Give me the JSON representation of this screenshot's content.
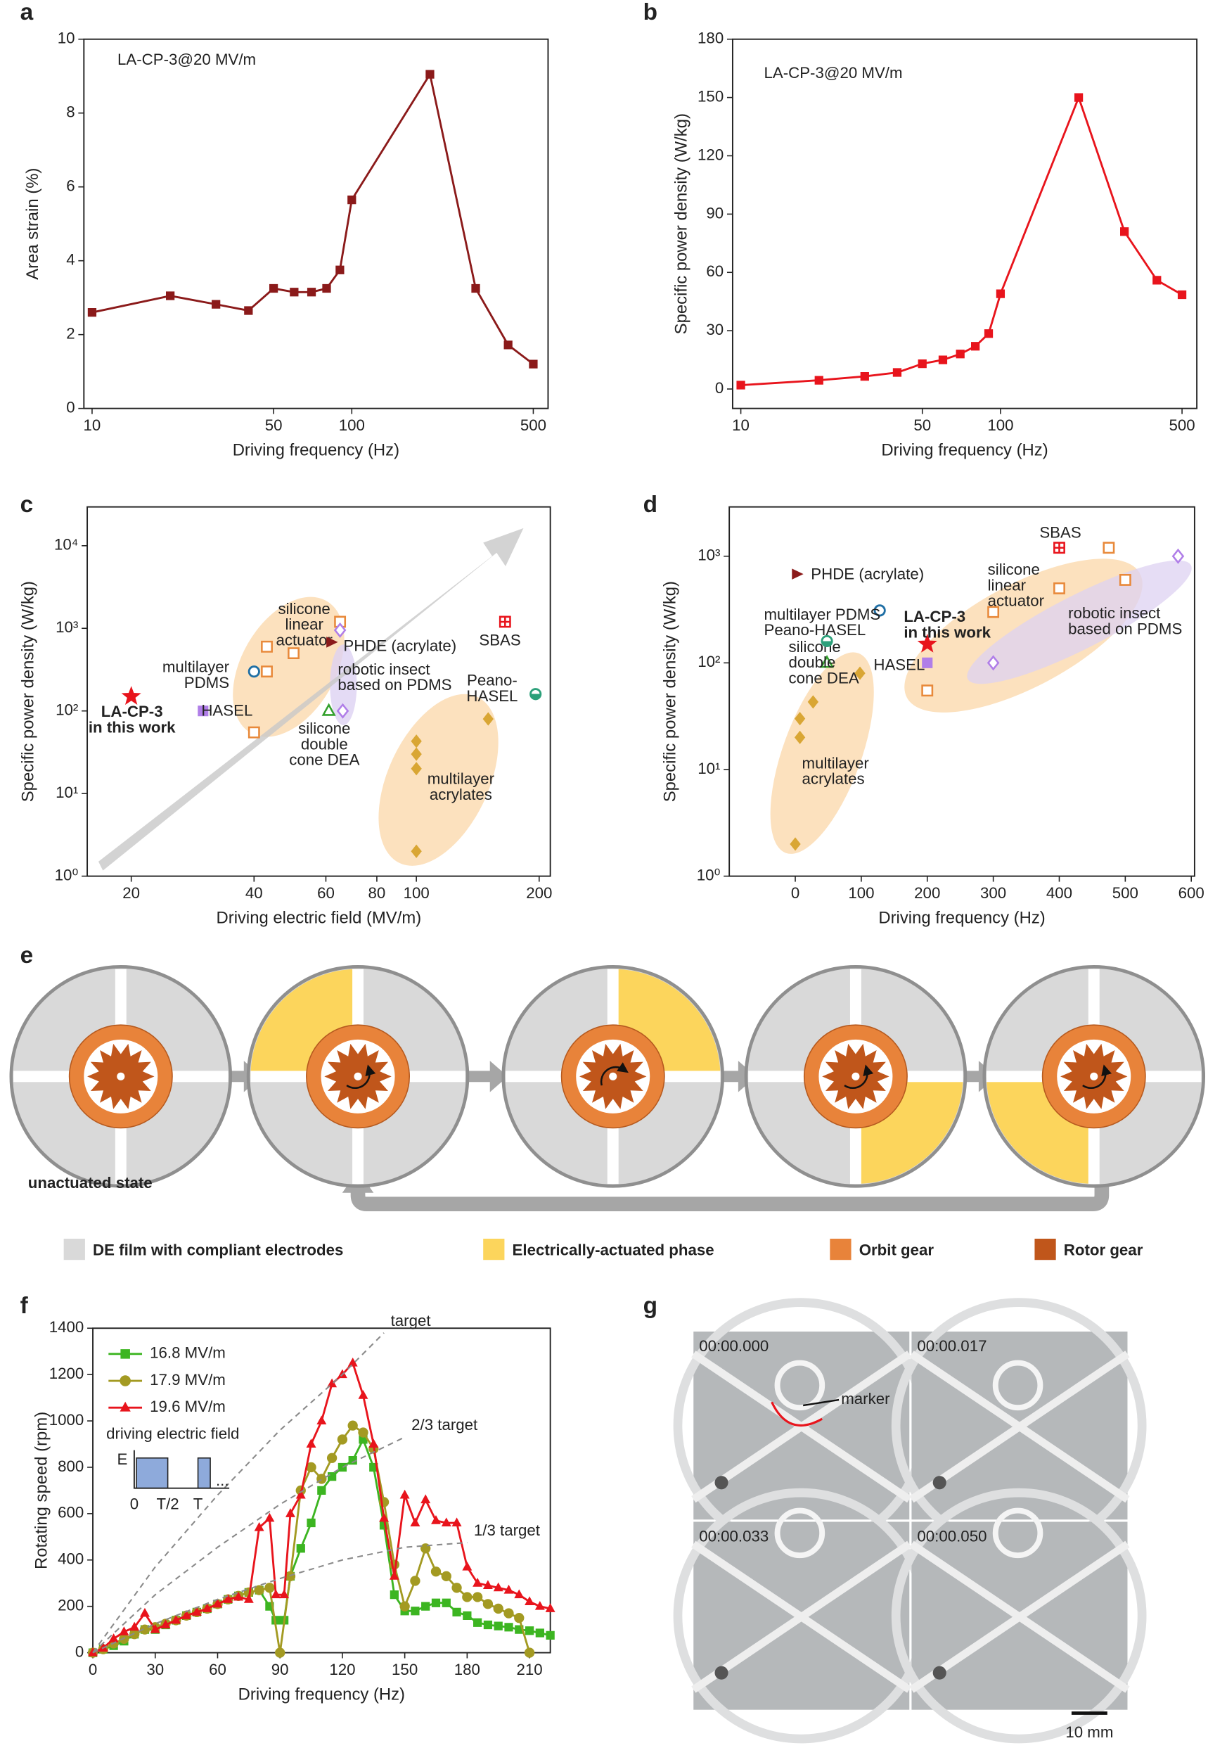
{
  "chart_data": [
    {
      "panel": "a",
      "type": "line",
      "annotation": "LA-CP-3@20 MV/m",
      "x_label": "Driving frequency (Hz)",
      "y_label": "Area strain (%)",
      "x": [
        10,
        20,
        30,
        40,
        50,
        60,
        70,
        80,
        90,
        100,
        200,
        300,
        400,
        500
      ],
      "values": [
        2.6,
        3.05,
        2.82,
        2.65,
        3.25,
        3.15,
        3.15,
        3.25,
        3.75,
        5.65,
        9.05,
        3.25,
        1.72,
        1.2
      ],
      "color": "#8b1a1a",
      "marker": "square",
      "x_log": true,
      "xlim": [
        9.3,
        570
      ],
      "ylim": [
        0,
        10
      ],
      "xticks": [
        10,
        50,
        100,
        500
      ],
      "yticks": [
        0,
        2,
        4,
        6,
        8,
        10
      ]
    },
    {
      "panel": "b",
      "type": "line",
      "annotation": "LA-CP-3@20 MV/m",
      "x_label": "Driving frequency (Hz)",
      "y_label": "Specific power density (W/kg)",
      "x": [
        10,
        20,
        30,
        40,
        50,
        60,
        70,
        80,
        90,
        100,
        200,
        300,
        400,
        500
      ],
      "values": [
        2,
        4.5,
        6.5,
        8.5,
        13,
        15,
        18,
        22,
        28.5,
        49,
        150,
        81,
        56,
        48.5
      ],
      "color": "#e8141c",
      "marker": "square",
      "x_log": true,
      "xlim": [
        9.3,
        570
      ],
      "ylim": [
        -10,
        180
      ],
      "xticks": [
        10,
        50,
        100,
        500
      ],
      "yticks": [
        0,
        30,
        60,
        90,
        120,
        150,
        180
      ]
    },
    {
      "panel": "c",
      "type": "scatter",
      "x_label": "Driving electric field (MV/m)",
      "y_label": "Specific power density (W/kg)",
      "x_log": true,
      "y_log": true,
      "xlim": [
        15.6,
        213
      ],
      "ylim": [
        1,
        29500
      ],
      "xticks": [
        20,
        40,
        60,
        80,
        100,
        200
      ],
      "yticks": [
        {
          "value": 1,
          "label": "10⁰"
        },
        {
          "value": 10,
          "label": "10¹"
        },
        {
          "value": 100,
          "label": "10²"
        },
        {
          "value": 1000,
          "label": "10³"
        },
        {
          "value": 10000,
          "label": "10⁴"
        }
      ],
      "series": [
        {
          "label": [
            "LA-CP-3",
            "in this work"
          ],
          "marker": "star",
          "color": "#e8141c",
          "x": [
            20
          ],
          "values": [
            150
          ]
        },
        {
          "label": [
            "HASEL"
          ],
          "marker": "square",
          "color": "#b07ee8",
          "x": [
            30
          ],
          "values": [
            100
          ]
        },
        {
          "label": [
            "multilayer",
            "PDMS"
          ],
          "marker": "circle-open",
          "color": "#1f6fa5",
          "x": [
            40
          ],
          "values": [
            300
          ]
        },
        {
          "label": [
            "silicone",
            "linear",
            "actuator"
          ],
          "marker": "square-open",
          "color": "#e8893a",
          "x": [
            40,
            43,
            43,
            50,
            65
          ],
          "values": [
            55,
            300,
            600,
            500,
            1200
          ]
        },
        {
          "label": [
            "PHDE (acrylate)"
          ],
          "marker": "triangle-right",
          "color": "#8b1a1a",
          "x": [
            62
          ],
          "values": [
            680
          ]
        },
        {
          "label": [
            "robotic insect",
            "based on PDMS"
          ],
          "marker": "diamond-open",
          "color": "#b07ee8",
          "x": [
            66,
            65
          ],
          "values": [
            100,
            950
          ]
        },
        {
          "label": [
            "silicone",
            "double",
            "cone DEA"
          ],
          "marker": "triangle-open",
          "color": "#33a02c",
          "x": [
            61
          ],
          "values": [
            100
          ]
        },
        {
          "label": [
            "SBAS"
          ],
          "marker": "square-cross",
          "color": "#e8141c",
          "x": [
            165
          ],
          "values": [
            1200
          ]
        },
        {
          "label": [
            "Peano-",
            "HASEL"
          ],
          "marker": "half-circle",
          "color": "#2ca07a",
          "x": [
            196
          ],
          "values": [
            160
          ]
        },
        {
          "label": [
            "multilayer",
            "acrylates"
          ],
          "marker": "diamond",
          "color": "#d9a634",
          "x": [
            100,
            100,
            100,
            100,
            150
          ],
          "values": [
            2,
            20,
            30,
            43,
            80
          ]
        }
      ]
    },
    {
      "panel": "d",
      "type": "scatter",
      "x_label": "Driving frequency (Hz)",
      "y_label": "Specific power density (W/kg)",
      "y_log": true,
      "xlim": [
        -100,
        605
      ],
      "ylim": [
        1,
        2900
      ],
      "xticks": [
        0,
        100,
        200,
        300,
        400,
        500,
        600
      ],
      "yticks": [
        {
          "value": 1,
          "label": "10⁰"
        },
        {
          "value": 10,
          "label": "10¹"
        },
        {
          "value": 100,
          "label": "10²"
        },
        {
          "value": 1000,
          "label": "10³"
        }
      ],
      "series": [
        {
          "label": [
            "LA-CP-3",
            "in this work"
          ],
          "marker": "star",
          "color": "#e8141c",
          "x": [
            200
          ],
          "values": [
            150
          ]
        },
        {
          "label": [
            "HASEL"
          ],
          "marker": "square",
          "color": "#b07ee8",
          "x": [
            200
          ],
          "values": [
            100
          ]
        },
        {
          "label": [
            "multilayer PDMS"
          ],
          "marker": "circle-open",
          "color": "#1f6fa5",
          "x": [
            128
          ],
          "values": [
            310
          ]
        },
        {
          "label": [
            "silicone",
            "linear",
            "actuator"
          ],
          "marker": "square-open",
          "color": "#e8893a",
          "x": [
            200,
            300,
            400,
            475,
            500
          ],
          "values": [
            55,
            300,
            500,
            1200,
            600
          ]
        },
        {
          "label": [
            "PHDE (acrylate)"
          ],
          "marker": "triangle-right",
          "color": "#8b1a1a",
          "x": [
            3
          ],
          "values": [
            680
          ]
        },
        {
          "label": [
            "robotic insect",
            "based on PDMS"
          ],
          "marker": "diamond-open",
          "color": "#b07ee8",
          "x": [
            300,
            580
          ],
          "values": [
            100,
            1000
          ]
        },
        {
          "label": [
            "silicone",
            "double",
            "cone DEA"
          ],
          "marker": "triangle-open",
          "color": "#33a02c",
          "x": [
            48
          ],
          "values": [
            100
          ]
        },
        {
          "label": [
            "SBAS"
          ],
          "marker": "square-cross",
          "color": "#e8141c",
          "x": [
            400
          ],
          "values": [
            1200
          ]
        },
        {
          "label": [
            "Peano-HASEL"
          ],
          "marker": "half-circle",
          "color": "#2ca07a",
          "x": [
            48
          ],
          "values": [
            160
          ]
        },
        {
          "label": [
            "multilayer",
            "acrylates"
          ],
          "marker": "diamond",
          "color": "#d9a634",
          "x": [
            0,
            7,
            7,
            27,
            98
          ],
          "values": [
            2,
            20,
            30,
            43,
            80
          ]
        }
      ]
    },
    {
      "panel": "f",
      "type": "line",
      "x_label": "Driving frequency (Hz)",
      "y_label": "Rotating speed (rpm)",
      "xlim": [
        0,
        220
      ],
      "ylim": [
        0,
        1400
      ],
      "xticks": [
        0,
        30,
        60,
        90,
        120,
        150,
        180,
        210
      ],
      "yticks": [
        0,
        200,
        400,
        600,
        800,
        1000,
        1200,
        1400
      ],
      "series": [
        {
          "name": "16.8 MV/m",
          "color": "#3cb521",
          "marker": "square",
          "x": [
            0,
            5,
            10,
            15,
            20,
            25,
            30,
            35,
            40,
            45,
            50,
            55,
            60,
            65,
            70,
            75,
            80,
            85,
            88,
            92,
            95,
            100,
            105,
            110,
            115,
            120,
            125,
            130,
            135,
            140,
            145,
            150,
            155,
            160,
            165,
            170,
            175,
            180,
            185,
            190,
            195,
            200,
            205,
            210,
            215,
            220
          ],
          "values": [
            0,
            15,
            30,
            50,
            80,
            100,
            100,
            120,
            140,
            160,
            175,
            190,
            210,
            230,
            245,
            260,
            270,
            200,
            140,
            140,
            330,
            450,
            560,
            700,
            760,
            800,
            830,
            920,
            800,
            550,
            250,
            180,
            180,
            200,
            215,
            215,
            175,
            160,
            130,
            120,
            115,
            110,
            100,
            95,
            85,
            75
          ]
        },
        {
          "name": "17.9 MV/m",
          "color": "#a39a22",
          "marker": "circle",
          "x": [
            0,
            5,
            10,
            15,
            20,
            25,
            30,
            35,
            40,
            45,
            50,
            55,
            60,
            65,
            70,
            75,
            80,
            85,
            90,
            95,
            100,
            105,
            110,
            115,
            120,
            125,
            130,
            135,
            140,
            145,
            150,
            155,
            160,
            165,
            170,
            175,
            180,
            185,
            190,
            195,
            200,
            205,
            210
          ],
          "values": [
            0,
            15,
            40,
            60,
            80,
            100,
            110,
            125,
            140,
            160,
            175,
            190,
            210,
            230,
            245,
            260,
            270,
            280,
            0,
            330,
            700,
            800,
            750,
            840,
            920,
            980,
            950,
            880,
            650,
            380,
            200,
            310,
            450,
            350,
            330,
            280,
            240,
            240,
            210,
            190,
            170,
            150,
            0
          ]
        },
        {
          "name": "19.6 MV/m",
          "color": "#e8141c",
          "marker": "triangle",
          "x": [
            0,
            5,
            10,
            15,
            20,
            25,
            30,
            35,
            40,
            45,
            50,
            55,
            60,
            65,
            70,
            75,
            80,
            85,
            88,
            92,
            95,
            100,
            105,
            110,
            115,
            120,
            125,
            130,
            135,
            140,
            145,
            150,
            155,
            160,
            165,
            170,
            175,
            180,
            185,
            190,
            195,
            200,
            205,
            210,
            215,
            220
          ],
          "values": [
            0,
            20,
            60,
            90,
            110,
            170,
            100,
            120,
            140,
            160,
            175,
            190,
            210,
            230,
            240,
            230,
            540,
            580,
            250,
            250,
            600,
            680,
            900,
            1000,
            1160,
            1200,
            1250,
            1110,
            900,
            580,
            330,
            680,
            560,
            660,
            570,
            560,
            560,
            370,
            300,
            290,
            280,
            270,
            250,
            220,
            200,
            190
          ]
        },
        {
          "name": "target",
          "color": "#8a8a8a",
          "dashed": true,
          "x": [
            0,
            30,
            60,
            90,
            120,
            140
          ],
          "values": [
            0,
            370,
            680,
            960,
            1200,
            1380
          ]
        },
        {
          "name": "2/3 target",
          "color": "#8a8a8a",
          "dashed": true,
          "x": [
            0,
            30,
            60,
            90,
            120,
            150
          ],
          "values": [
            0,
            250,
            455,
            640,
            800,
            930
          ]
        },
        {
          "name": "1/3 target",
          "color": "#8a8a8a",
          "dashed": true,
          "x": [
            0,
            30,
            60,
            90,
            120,
            150,
            180
          ],
          "values": [
            0,
            125,
            230,
            320,
            400,
            455,
            475
          ]
        }
      ],
      "inset": {
        "title": "driving electric field",
        "y_label": "E",
        "x_labels": [
          "0",
          "T/2",
          "T"
        ],
        "ellipsis": "..."
      }
    }
  ],
  "diagram": {
    "panel": "e",
    "caption": "unactuated state",
    "legend": [
      {
        "label": "DE film with compliant electrodes",
        "color": "#d9d9d9"
      },
      {
        "label": "Electrically-actuated phase",
        "color": "#fcd55c"
      },
      {
        "label": "Orbit gear",
        "color": "#e8833a"
      },
      {
        "label": "Rotor gear",
        "color": "#c0561b"
      }
    ]
  },
  "photos": {
    "panel": "g",
    "timestamps": [
      "00:00.000",
      "00:00.017",
      "00:00.033",
      "00:00.050"
    ],
    "marker_label": "marker",
    "scale_bar": "10 mm"
  }
}
